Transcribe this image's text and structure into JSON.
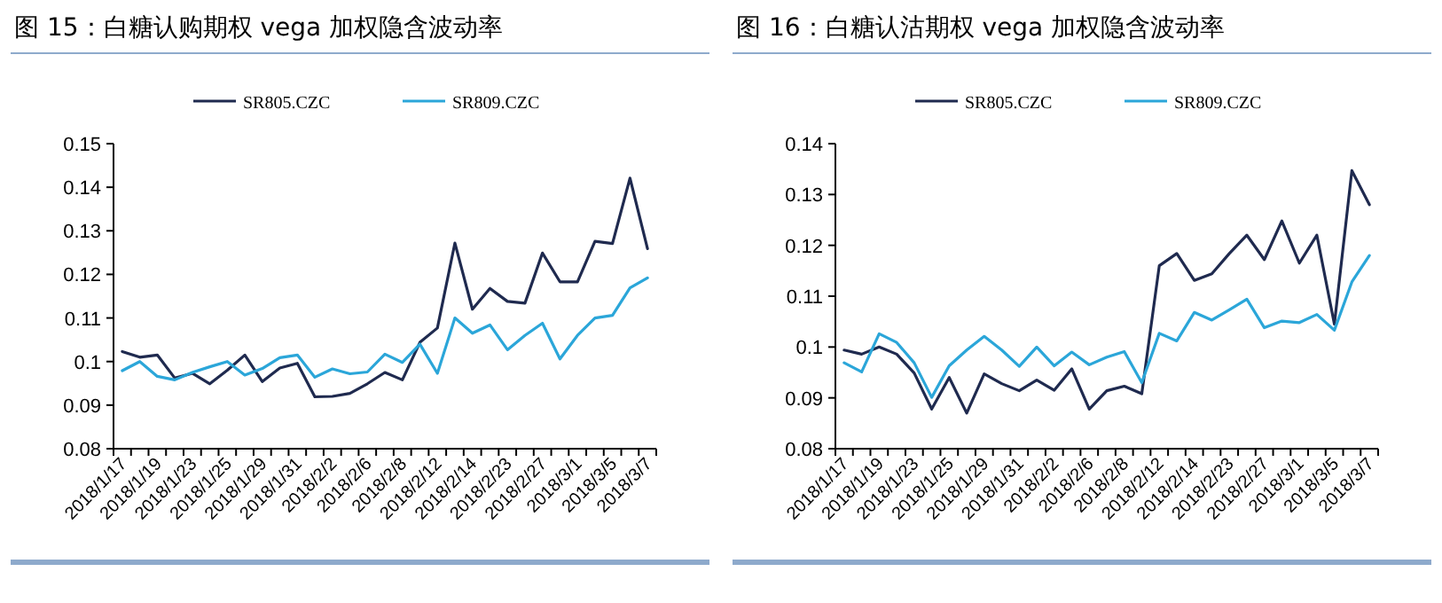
{
  "chart_data": [
    {
      "type": "line",
      "title": "图 15：白糖认购期权 vega 加权隐含波动率",
      "categories": [
        "2018/1/17",
        null,
        "2018/1/19",
        null,
        "2018/1/23",
        null,
        "2018/1/25",
        null,
        "2018/1/29",
        null,
        "2018/1/31",
        null,
        "2018/2/2",
        null,
        "2018/2/6",
        null,
        "2018/2/8",
        null,
        "2018/2/12",
        null,
        "2018/2/14",
        null,
        "2018/2/23",
        null,
        "2018/2/27",
        null,
        "2018/3/1",
        null,
        "2018/3/5",
        null,
        "2018/3/7"
      ],
      "series": [
        {
          "name": "SR805.CZC",
          "color": "#1f2a4f",
          "values": [
            0.1023,
            0.101,
            0.1015,
            0.0962,
            0.0973,
            0.0949,
            0.098,
            0.1015,
            0.0954,
            0.0985,
            0.0996,
            0.0919,
            0.092,
            0.0927,
            0.0949,
            0.0975,
            0.0958,
            0.1044,
            0.1077,
            0.1272,
            0.112,
            0.1168,
            0.1138,
            0.1134,
            0.1249,
            0.1183,
            0.1183,
            0.1276,
            0.1271,
            0.1421,
            0.1259
          ]
        },
        {
          "name": "SR809.CZC",
          "color": "#2ba6d9",
          "values": [
            0.0979,
            0.1,
            0.0966,
            0.0958,
            0.0975,
            0.0988,
            0.1,
            0.0969,
            0.0984,
            0.1009,
            0.1015,
            0.0964,
            0.0983,
            0.0972,
            0.0976,
            0.1017,
            0.0998,
            0.104,
            0.0973,
            0.11,
            0.1065,
            0.1084,
            0.1027,
            0.106,
            0.1088,
            0.1006,
            0.106,
            0.11,
            0.1106,
            0.1169,
            0.1192
          ]
        }
      ],
      "ylim": [
        0.08,
        0.15
      ],
      "yticks": [
        0.08,
        0.09,
        0.1,
        0.11,
        0.12,
        0.13,
        0.14,
        0.15
      ],
      "legend": "top",
      "grid": false
    },
    {
      "type": "line",
      "title": "图 16：白糖认沽期权 vega 加权隐含波动率",
      "categories": [
        "2018/1/17",
        null,
        "2018/1/19",
        null,
        "2018/1/23",
        null,
        "2018/1/25",
        null,
        "2018/1/29",
        null,
        "2018/1/31",
        null,
        "2018/2/2",
        null,
        "2018/2/6",
        null,
        "2018/2/8",
        null,
        "2018/2/12",
        null,
        "2018/2/14",
        null,
        "2018/2/23",
        null,
        "2018/2/27",
        null,
        "2018/3/1",
        null,
        "2018/3/5",
        null,
        "2018/3/7"
      ],
      "series": [
        {
          "name": "SR805.CZC",
          "color": "#1f2a4f",
          "values": [
            0.0994,
            0.0986,
            0.1,
            0.0986,
            0.0949,
            0.0878,
            0.094,
            0.087,
            0.0947,
            0.0928,
            0.0914,
            0.0935,
            0.0915,
            0.0957,
            0.0878,
            0.0914,
            0.0923,
            0.0908,
            0.116,
            0.1184,
            0.1131,
            0.1144,
            0.1184,
            0.122,
            0.1172,
            0.1248,
            0.1165,
            0.122,
            0.1045,
            0.1347,
            0.128
          ]
        },
        {
          "name": "SR809.CZC",
          "color": "#2ba6d9",
          "values": [
            0.0969,
            0.0951,
            0.1026,
            0.1009,
            0.0969,
            0.0901,
            0.0963,
            0.0994,
            0.1021,
            0.0994,
            0.0962,
            0.1,
            0.0963,
            0.099,
            0.0965,
            0.098,
            0.0991,
            0.093,
            0.1027,
            0.1012,
            0.1068,
            0.1053,
            0.1073,
            0.1094,
            0.1038,
            0.1051,
            0.1048,
            0.1064,
            0.1033,
            0.1128,
            0.118
          ]
        }
      ],
      "ylim": [
        0.08,
        0.14
      ],
      "yticks": [
        0.08,
        0.09,
        0.1,
        0.11,
        0.12,
        0.13,
        0.14
      ],
      "legend": "top",
      "grid": false
    }
  ]
}
